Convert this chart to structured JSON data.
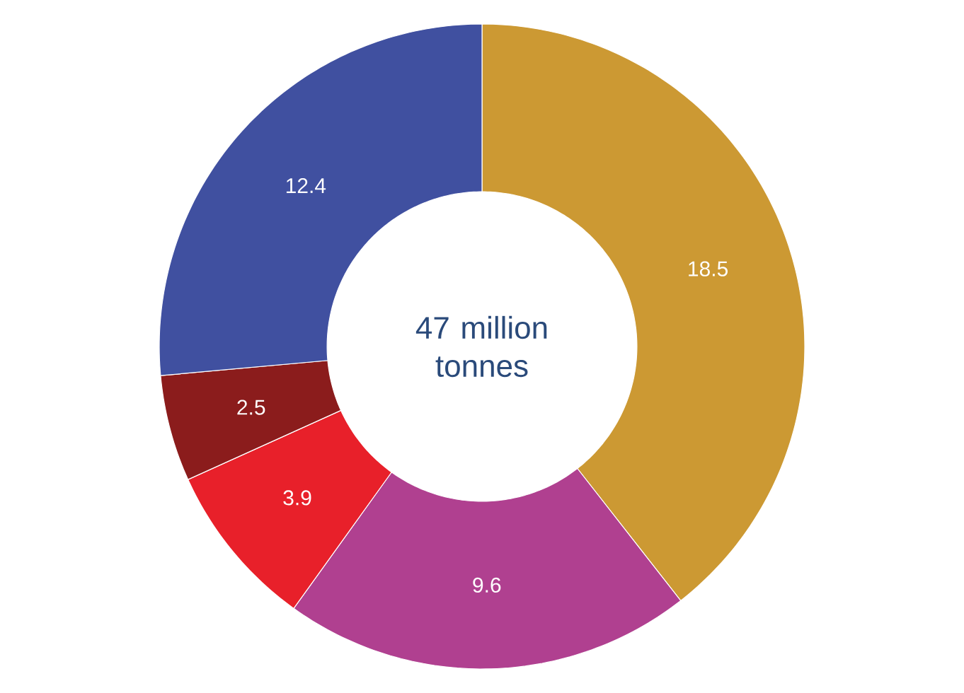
{
  "chart_data": {
    "type": "donut",
    "categories": [
      null,
      null,
      null,
      null,
      null
    ],
    "values": [
      18.5,
      9.6,
      3.9,
      2.5,
      12.4
    ],
    "colors": [
      "#cc9933",
      "#b04090",
      "#e8202a",
      "#8b1c1c",
      "#4050a0"
    ],
    "data_labels": true,
    "annotations": [
      "47 million tonnes"
    ]
  }
}
